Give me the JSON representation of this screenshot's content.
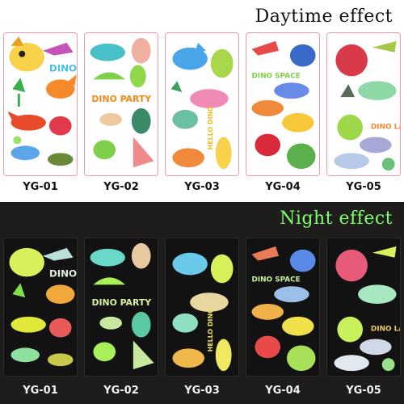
{
  "headings": {
    "daytime": "Daytime effect",
    "night": "Night effect"
  },
  "cards": [
    {
      "code": "YG-01",
      "sticker_text": "DINO"
    },
    {
      "code": "YG-02",
      "sticker_text": "DINO PARTY"
    },
    {
      "code": "YG-03",
      "sticker_text": "HELLO DINO"
    },
    {
      "code": "YG-04",
      "sticker_text": "DINO SPACE"
    },
    {
      "code": "YG-05",
      "sticker_text": "DINO LAND"
    }
  ],
  "colors": {
    "day_background": "#ffffff",
    "night_background": "#1e1d1b",
    "night_heading": "#7dff6a",
    "card_border": "#ef9aa6"
  }
}
